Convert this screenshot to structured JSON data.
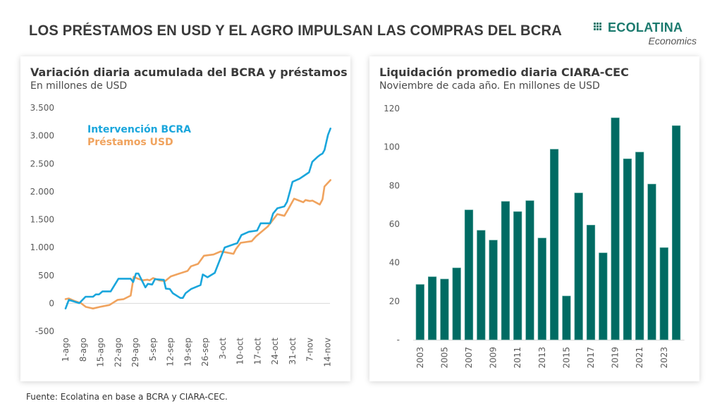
{
  "header": {
    "title": "LOS PRÉSTAMOS EN USD Y EL AGRO IMPULSAN LAS COMPRAS DEL BCRA",
    "logo_name": "ECOLATINA",
    "logo_sub": "Economics",
    "brand_color": "#1b7a6e"
  },
  "footer": {
    "source": "Fuente: Ecolatina en base a BCRA y CIARA-CEC."
  },
  "chart_data": [
    {
      "type": "line",
      "title": "Variación diaria acumulada del BCRA y préstamos",
      "subtitle": "En millones de USD",
      "xlabel": "",
      "ylabel": "",
      "ylim": [
        -500,
        3500
      ],
      "yticks": [
        -500,
        0,
        500,
        1000,
        1500,
        2000,
        2500,
        3000,
        3500
      ],
      "ytick_labels": [
        "-500",
        "0",
        "500",
        "1.000",
        "1.500",
        "2.000",
        "2.500",
        "3.000",
        "3.500"
      ],
      "xlim_days": [
        0,
        106
      ],
      "xticks_days": [
        0,
        7,
        14,
        21,
        28,
        35,
        42,
        49,
        56,
        63,
        70,
        77,
        84,
        91,
        98,
        105
      ],
      "xtick_labels": [
        "1-ago",
        "8-ago",
        "15-ago",
        "22-ago",
        "29-ago",
        "5-sep",
        "12-sep",
        "19-sep",
        "26-sep",
        "3-oct",
        "10-oct",
        "17-oct",
        "24-oct",
        "31-oct",
        "7-nov",
        "14-nov"
      ],
      "x_unit": "days since 1-ago",
      "grid": false,
      "legend_position": "top-left",
      "series": [
        {
          "name": "Intervención BCRA",
          "color": "#1aa6dc",
          "points": [
            [
              0,
              -92
            ],
            [
              1.3,
              63
            ],
            [
              3.4,
              34
            ],
            [
              5.5,
              4
            ],
            [
              8.0,
              118
            ],
            [
              11.0,
              118
            ],
            [
              12.1,
              160
            ],
            [
              13.4,
              160
            ],
            [
              14.8,
              214
            ],
            [
              18.1,
              214
            ],
            [
              21.2,
              441
            ],
            [
              26.1,
              441
            ],
            [
              27.1,
              382
            ],
            [
              28.2,
              534
            ],
            [
              29.2,
              534
            ],
            [
              32.0,
              286
            ],
            [
              33.0,
              349
            ],
            [
              34.7,
              336
            ],
            [
              35.8,
              433
            ],
            [
              39.4,
              420
            ],
            [
              40.2,
              265
            ],
            [
              41.8,
              256
            ],
            [
              43.0,
              181
            ],
            [
              46.0,
              97
            ],
            [
              47.0,
              97
            ],
            [
              48.1,
              181
            ],
            [
              50.3,
              256
            ],
            [
              54.1,
              328
            ],
            [
              55.0,
              517
            ],
            [
              56.9,
              466
            ],
            [
              59.8,
              546
            ],
            [
              63.8,
              1000
            ],
            [
              67.8,
              1063
            ],
            [
              68.8,
              1076
            ],
            [
              70.5,
              1223
            ],
            [
              73.5,
              1282
            ],
            [
              76.8,
              1303
            ],
            [
              78.2,
              1433
            ],
            [
              82.0,
              1433
            ],
            [
              83.2,
              1609
            ],
            [
              84.9,
              1702
            ],
            [
              87.7,
              1735
            ],
            [
              88.8,
              1819
            ],
            [
              91.0,
              2176
            ],
            [
              93.8,
              2231
            ],
            [
              95.5,
              2282
            ],
            [
              97.6,
              2345
            ],
            [
              98.9,
              2534
            ],
            [
              100.9,
              2618
            ],
            [
              102.1,
              2660
            ],
            [
              103.0,
              2681
            ],
            [
              103.8,
              2744
            ],
            [
              105.2,
              3017
            ],
            [
              106.2,
              3130
            ]
          ]
        },
        {
          "name": "Préstamos USD",
          "color": "#f0a35e",
          "points": [
            [
              0,
              76
            ],
            [
              1.3,
              88
            ],
            [
              3.4,
              46
            ],
            [
              6.2,
              4
            ],
            [
              8.1,
              -63
            ],
            [
              11.0,
              -92
            ],
            [
              13.8,
              -63
            ],
            [
              17.6,
              -29
            ],
            [
              20.9,
              63
            ],
            [
              23.3,
              76
            ],
            [
              26.1,
              139
            ],
            [
              27.3,
              475
            ],
            [
              29.0,
              441
            ],
            [
              30.9,
              412
            ],
            [
              32.8,
              424
            ],
            [
              33.7,
              412
            ],
            [
              35.1,
              454
            ],
            [
              37.5,
              412
            ],
            [
              39.9,
              399
            ],
            [
              42.2,
              483
            ],
            [
              46.0,
              538
            ],
            [
              48.9,
              580
            ],
            [
              50.3,
              664
            ],
            [
              53.1,
              706
            ],
            [
              55.5,
              853
            ],
            [
              59.3,
              874
            ],
            [
              62.1,
              929
            ],
            [
              64.0,
              916
            ],
            [
              67.3,
              887
            ],
            [
              68.3,
              971
            ],
            [
              70.2,
              1084
            ],
            [
              74.6,
              1113
            ],
            [
              76.3,
              1197
            ],
            [
              81.1,
              1378
            ],
            [
              84.9,
              1597
            ],
            [
              87.7,
              1567
            ],
            [
              89.1,
              1672
            ],
            [
              91.6,
              1874
            ],
            [
              95.3,
              1811
            ],
            [
              96.2,
              1849
            ],
            [
              97.9,
              1832
            ],
            [
              99.0,
              1840
            ],
            [
              101.9,
              1769
            ],
            [
              103.0,
              1861
            ],
            [
              103.8,
              2092
            ],
            [
              106.2,
              2206
            ]
          ]
        }
      ]
    },
    {
      "type": "bar",
      "title": "Liquidación promedio diaria CIARA-CEC",
      "subtitle": "Noviembre de cada año. En millones de USD",
      "xlabel": "",
      "ylabel": "",
      "ylim": [
        0,
        120
      ],
      "yticks": [
        0,
        20,
        40,
        60,
        80,
        100,
        120
      ],
      "ytick_labels": [
        "-",
        "20",
        "40",
        "60",
        "80",
        "100",
        "120"
      ],
      "grid": false,
      "bar_color": "#006b63",
      "categories": [
        "2003",
        "2004",
        "2005",
        "2006",
        "2007",
        "2008",
        "2009",
        "2010",
        "2011",
        "2012",
        "2013",
        "2014",
        "2015",
        "2016",
        "2017",
        "2018",
        "2019",
        "2020",
        "2021",
        "2022",
        "2023",
        "2024"
      ],
      "xtick_labels": [
        "2003",
        "",
        "2005",
        "",
        "2007",
        "",
        "2009",
        "",
        "2011",
        "",
        "2013",
        "",
        "2015",
        "",
        "2017",
        "",
        "2019",
        "",
        "2021",
        "",
        "2023",
        ""
      ],
      "values": [
        28.7,
        32.7,
        31.5,
        37.3,
        67.4,
        56.8,
        51.7,
        71.8,
        66.5,
        72.2,
        52.8,
        98.9,
        22.7,
        76.2,
        59.5,
        45.1,
        115.2,
        93.9,
        97.4,
        80.8,
        47.8,
        111.1
      ]
    }
  ]
}
